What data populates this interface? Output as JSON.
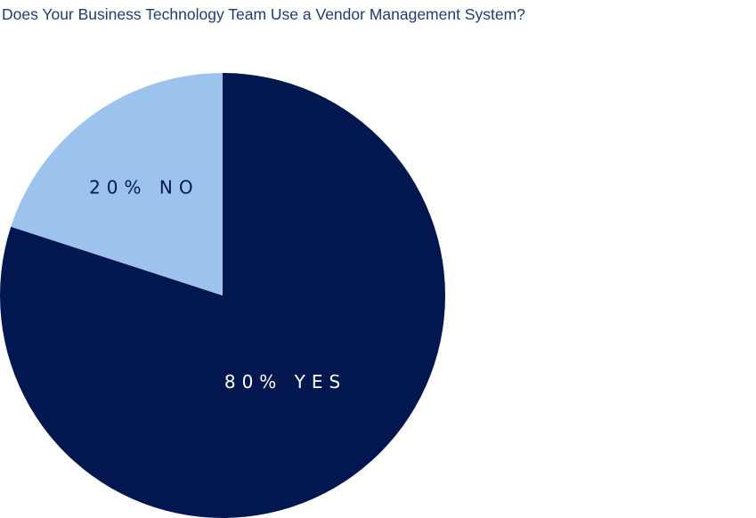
{
  "chart_data": {
    "type": "pie",
    "title": "Does Your Business Technology Team Use a Vendor Management System?",
    "slices": [
      {
        "label": "YES",
        "value": 80,
        "text": "80% YES",
        "color": "#02174f",
        "text_color": "#ffffff"
      },
      {
        "label": "NO",
        "value": 20,
        "text": "20% NO",
        "color": "#9cc3ed",
        "text_color": "#02174f"
      }
    ],
    "legend": "none",
    "start_angle_deg": 0,
    "direction": "clockwise"
  }
}
